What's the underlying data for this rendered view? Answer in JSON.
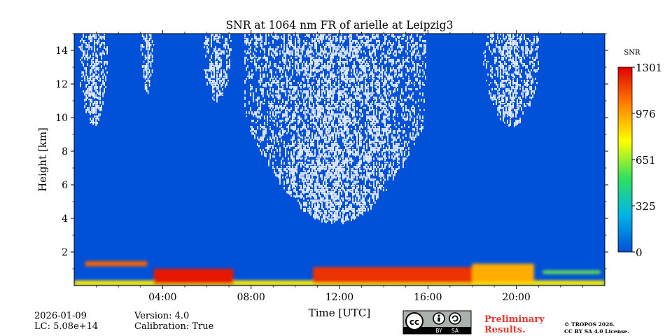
{
  "chart_data": {
    "type": "heatmap",
    "title": "SNR at 1064 nm FR of arielle at Leipzig3",
    "xlabel": "Time [UTC]",
    "ylabel": "Height [km]",
    "xlim": [
      0,
      24
    ],
    "ylim": [
      0,
      15
    ],
    "x_ticks": [
      {
        "value": 4,
        "label": "04:00"
      },
      {
        "value": 8,
        "label": "08:00"
      },
      {
        "value": 12,
        "label": "12:00"
      },
      {
        "value": 16,
        "label": "16:00"
      },
      {
        "value": 20,
        "label": "20:00"
      }
    ],
    "y_ticks": [
      {
        "value": 2,
        "label": "2"
      },
      {
        "value": 4,
        "label": "4"
      },
      {
        "value": 6,
        "label": "6"
      },
      {
        "value": 8,
        "label": "8"
      },
      {
        "value": 10,
        "label": "10"
      },
      {
        "value": 12,
        "label": "12"
      },
      {
        "value": 14,
        "label": "14"
      }
    ],
    "colorbar": {
      "label": "SNR",
      "min": 0,
      "max": 1301,
      "ticks": [
        {
          "value": 0,
          "label": "0"
        },
        {
          "value": 325,
          "label": "325"
        },
        {
          "value": 651,
          "label": "651"
        },
        {
          "value": 976,
          "label": "976"
        },
        {
          "value": 1301,
          "label": "1301"
        }
      ],
      "colors": [
        "#0050d8",
        "#00b4e8",
        "#30e060",
        "#ffff00",
        "#ff8000",
        "#e00000"
      ]
    },
    "background_snr": 80,
    "layers": [
      {
        "name": "surface layer",
        "t_start": 0,
        "t_end": 24,
        "h_bottom": 0.0,
        "h_top": 0.3,
        "snr": 820
      },
      {
        "name": "aerosol layer night",
        "t_start": 3.6,
        "t_end": 7.2,
        "h_bottom": 0.1,
        "h_top": 1.0,
        "snr": 1250
      },
      {
        "name": "aerosol layer day",
        "t_start": 10.8,
        "t_end": 18.0,
        "h_bottom": 0.15,
        "h_top": 1.1,
        "snr": 1200
      },
      {
        "name": "aerosol layer evening",
        "t_start": 18.0,
        "t_end": 20.8,
        "h_bottom": 0.2,
        "h_top": 1.3,
        "snr": 950
      },
      {
        "name": "elevated layer",
        "t_start": 0.5,
        "t_end": 3.3,
        "h_bottom": 1.15,
        "h_top": 1.45,
        "snr": 1100
      },
      {
        "name": "thin layer evening",
        "t_start": 21.2,
        "t_end": 23.8,
        "h_bottom": 0.7,
        "h_top": 0.9,
        "snr": 600
      }
    ],
    "no_signal_regions": [
      {
        "t_start": 7.7,
        "t_end": 15.9,
        "h_bottom": 3.8,
        "h_top": 15
      },
      {
        "t_start": 5.8,
        "t_end": 7.1,
        "h_bottom": 11.0,
        "h_top": 15
      },
      {
        "t_start": 18.5,
        "t_end": 21.0,
        "h_bottom": 9.5,
        "h_top": 15
      },
      {
        "t_start": 0.2,
        "t_end": 1.5,
        "h_bottom": 9.5,
        "h_top": 15
      },
      {
        "t_start": 3.0,
        "t_end": 3.6,
        "h_bottom": 11.5,
        "h_top": 15
      }
    ]
  },
  "footer": {
    "date": "2026-01-09",
    "lc": "LC: 5.08e+14",
    "version": "Version: 4.0",
    "calibration": "Calibration: True",
    "preliminary_line1": "Preliminary",
    "preliminary_line2": "Results.",
    "copyright_line1": "© TROPOS 2026.",
    "copyright_line2": "CC BY SA 4.0 License.",
    "license_badge": {
      "cc": "cc",
      "by": "BY",
      "sa": "SA"
    }
  }
}
